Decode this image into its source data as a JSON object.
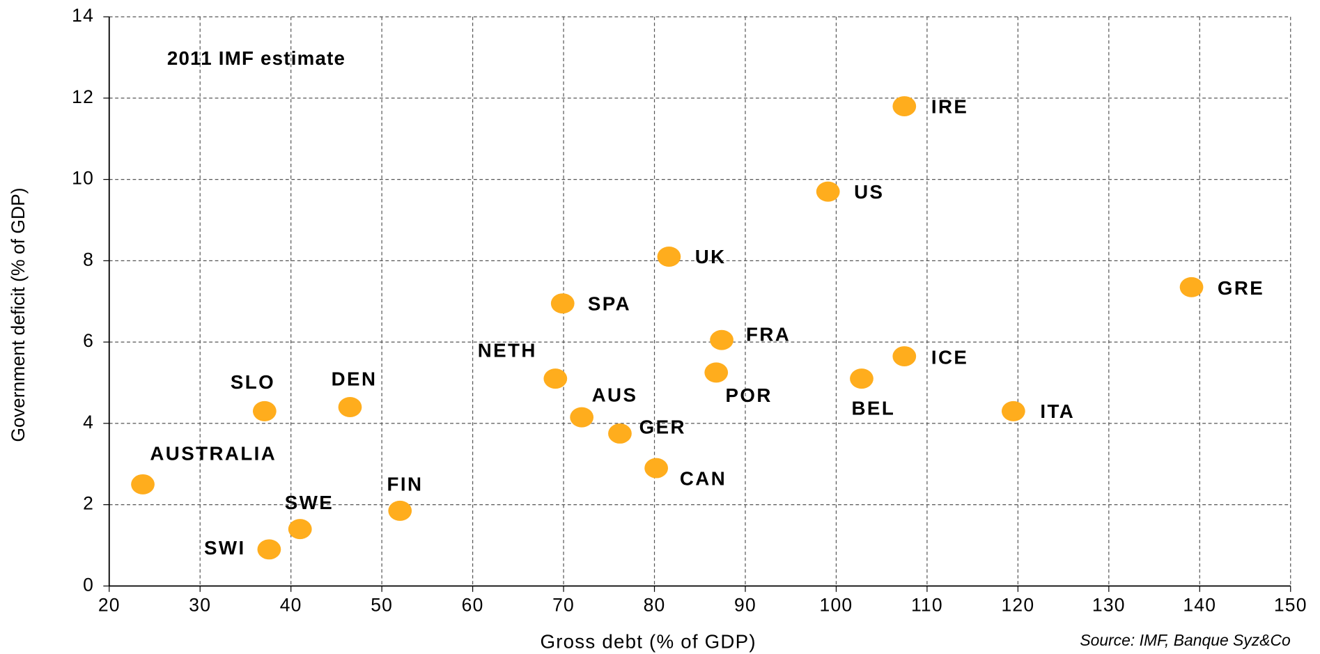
{
  "chart_data": {
    "type": "scatter",
    "annotation": "2011 IMF estimate",
    "xlabel": "Gross debt (% of GDP)",
    "ylabel": "Government deficit (% of GDP)",
    "source": "Source: IMF, Banque Syz&Co",
    "xlim": [
      20,
      150
    ],
    "ylim": [
      0,
      14
    ],
    "xticks": [
      20,
      30,
      40,
      50,
      60,
      70,
      80,
      90,
      100,
      110,
      120,
      130,
      140,
      150
    ],
    "yticks": [
      0,
      2,
      4,
      6,
      8,
      10,
      12,
      14
    ],
    "grid": true,
    "series": [
      {
        "color": "#ffad1d",
        "labels": [
          "IRE",
          "US",
          "UK",
          "GRE",
          "SPA",
          "FRA",
          "ICE",
          "NETH",
          "POR",
          "BEL",
          "SLO",
          "DEN",
          "ITA",
          "AUS",
          "GER",
          "CAN",
          "AUSTRALIA",
          "FIN",
          "SWE",
          "SWI"
        ],
        "x": [
          107.5,
          99.1,
          81.6,
          139.1,
          69.9,
          87.4,
          107.5,
          69.1,
          86.8,
          102.8,
          37.1,
          46.5,
          119.5,
          72.0,
          76.2,
          80.2,
          23.7,
          52.0,
          41.0,
          37.6
        ],
        "values": [
          11.8,
          9.7,
          8.1,
          7.35,
          6.95,
          6.05,
          5.65,
          5.1,
          5.25,
          5.1,
          4.3,
          4.4,
          4.3,
          4.15,
          3.75,
          2.9,
          2.5,
          1.85,
          1.4,
          0.9
        ]
      }
    ]
  }
}
